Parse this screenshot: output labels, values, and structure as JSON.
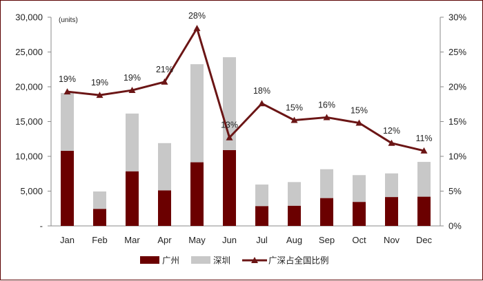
{
  "chart_data": {
    "type": "bar",
    "stacked": true,
    "unit_label": "(units)",
    "categories": [
      "Jan",
      "Feb",
      "Mar",
      "Apr",
      "May",
      "Jun",
      "Jul",
      "Aug",
      "Sep",
      "Oct",
      "Nov",
      "Dec"
    ],
    "series": [
      {
        "name": "广州",
        "type": "bar",
        "axis": "left",
        "color": "#6b0000",
        "values": [
          10800,
          2450,
          7850,
          5100,
          9150,
          10900,
          2850,
          2900,
          4000,
          3450,
          4150,
          4200
        ]
      },
      {
        "name": "深圳",
        "type": "bar",
        "axis": "left",
        "color": "#c8c8c8",
        "values": [
          8300,
          2500,
          8300,
          6800,
          14100,
          13350,
          3100,
          3400,
          4150,
          3850,
          3400,
          5000
        ]
      },
      {
        "name": "广深占全国比例",
        "type": "line",
        "axis": "right",
        "color": "#6b1515",
        "values": [
          19.3,
          18.8,
          19.5,
          20.7,
          28.4,
          12.7,
          17.6,
          15.2,
          15.6,
          14.8,
          11.9,
          10.8
        ],
        "labels": [
          "19%",
          "19%",
          "19%",
          "21%",
          "28%",
          "13%",
          "18%",
          "15%",
          "16%",
          "15%",
          "12%",
          "11%"
        ]
      }
    ],
    "y_left": {
      "min": 0,
      "max": 30000,
      "ticks": [
        0,
        5000,
        10000,
        15000,
        20000,
        25000,
        30000
      ],
      "tick_labels": [
        "-",
        "5,000",
        "10,000",
        "15,000",
        "20,000",
        "25,000",
        "30,000"
      ]
    },
    "y_right": {
      "min": 0,
      "max": 30,
      "ticks": [
        0,
        5,
        10,
        15,
        20,
        25,
        30
      ],
      "tick_labels": [
        "0%",
        "5%",
        "10%",
        "15%",
        "20%",
        "25%",
        "30%"
      ]
    },
    "grid": false,
    "legend": "bottom"
  }
}
